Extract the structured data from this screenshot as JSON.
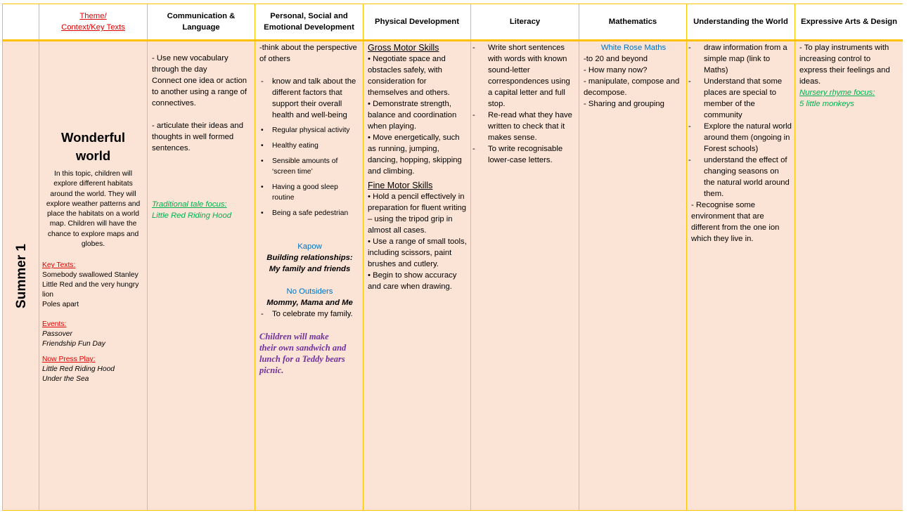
{
  "header": {
    "theme": [
      "Theme/",
      "Context/Key Texts"
    ],
    "subjects": [
      "Communication & Language",
      "Personal, Social and Emotional Development",
      "Physical Development",
      "Literacy",
      "Mathematics",
      "Understanding the World",
      "Expressive Arts & Design"
    ]
  },
  "row": {
    "label": "Summer 1",
    "theme": {
      "title": "Wonderful world",
      "intro": "In this topic, children will explore different habitats around the world. They will explore weather patterns and place the habitats on a world map. Children will have the chance to explore maps and globes.",
      "key_texts_label": "Key Texts:",
      "key_texts": [
        "Somebody swallowed Stanley",
        "Little Red and the very hungry lion",
        "Poles apart"
      ],
      "events_label": "Events:",
      "events": [
        "Passover",
        "Friendship Fun Day"
      ],
      "now_press_play_label": "Now Press Play:",
      "now_press_play": [
        "Little Red Riding Hood",
        "Under the Sea"
      ]
    },
    "communication": {
      "items": [
        "- Use new vocabulary through the day",
        "Connect one idea or action to another using a range of connectives.",
        "- articulate their ideas and thoughts in well formed sentences."
      ],
      "focus_label": "Traditional tale focus:",
      "focus_text": "Little Red Riding Hood"
    },
    "psed": {
      "intro": "-think about the perspective of others",
      "point": "know and talk about the different factors that support their overall health and well-being",
      "bullets": [
        "Regular physical activity",
        "Healthy eating",
        "Sensible amounts of ‘screen time’",
        "Having a good sleep routine",
        "Being a safe pedestrian"
      ],
      "kapow_label": "Kapow",
      "kapow_text": "Building relationships: My family and friends",
      "no_outsiders_label": "No Outsiders",
      "no_outsiders_text": "Mommy, Mama and Me",
      "no_outsiders_point": "To celebrate my family.",
      "activity": "Children will make their own sandwich and lunch for a Teddy bears picnic."
    },
    "physical": {
      "gross_label": "Gross Motor Skills",
      "gross": [
        "Negotiate space and obstacles safely, with consideration for themselves and others.",
        "Demonstrate strength, balance and coordination when playing.",
        "Move energetically, such as running, jumping, dancing, hopping, skipping and climbing."
      ],
      "fine_label": "Fine Motor Skills",
      "fine": [
        "Hold a pencil effectively in preparation for fluent writing – using the tripod grip in almost all cases.",
        "Use a range of small tools, including scissors, paint brushes and cutlery.",
        "Begin to show accuracy and care when drawing."
      ]
    },
    "literacy": {
      "items": [
        "Write short sentences with words with known sound-letter correspondences using a capital letter and full stop.",
        "Re-read what they have written to check that it makes sense.",
        "To write recognisable lower-case letters."
      ]
    },
    "mathematics": {
      "label": "White Rose Maths",
      "items": [
        "-to 20 and beyond",
        "- How many now?",
        "- manipulate, compose and decompose.",
        "- Sharing and grouping"
      ]
    },
    "understanding": {
      "items": [
        "draw information from a simple map (link to Maths)",
        "Understand that some places are special to member of the community",
        "Explore the natural world around them (ongoing in Forest schools)",
        "understand the effect of changing seasons on the natural world around them."
      ],
      "extra": "- Recognise some environment that are different from the one ion which they live in."
    },
    "expressive": {
      "text": "- To play instruments with increasing control to express their feelings and ideas.",
      "focus_label": "Nursery rhyme focus:",
      "focus_text": "5 little monkeys"
    }
  }
}
